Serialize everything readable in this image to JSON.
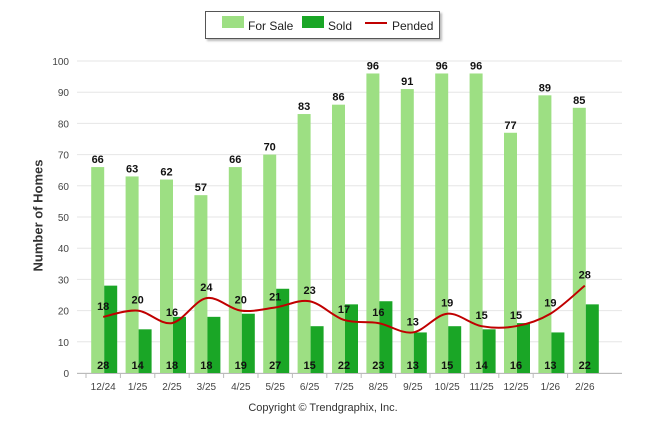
{
  "chart_data": {
    "type": "bar",
    "title": "",
    "xlabel": "",
    "ylabel": "Number of Homes",
    "ylim": [
      0,
      100
    ],
    "yticks": [
      0,
      10,
      20,
      30,
      40,
      50,
      60,
      70,
      80,
      90,
      100
    ],
    "categories": [
      "12/24",
      "1/25",
      "2/25",
      "3/25",
      "4/25",
      "5/25",
      "6/25",
      "7/25",
      "8/25",
      "9/25",
      "10/25",
      "11/25",
      "12/25",
      "1/26",
      "2/26"
    ],
    "series": [
      {
        "name": "For Sale",
        "kind": "bar",
        "color": "#9ddf83",
        "values": [
          66,
          63,
          62,
          57,
          66,
          70,
          83,
          86,
          96,
          91,
          96,
          96,
          77,
          89,
          85
        ]
      },
      {
        "name": "Sold",
        "kind": "bar",
        "color": "#1aa626",
        "values": [
          28,
          14,
          18,
          18,
          19,
          27,
          15,
          22,
          23,
          13,
          15,
          14,
          16,
          13,
          22
        ]
      },
      {
        "name": "Pended",
        "kind": "line",
        "color": "#c00000",
        "values": [
          18,
          20,
          16,
          24,
          20,
          21,
          23,
          17,
          16,
          13,
          19,
          15,
          15,
          19,
          28
        ]
      }
    ],
    "legend_position": "top-center",
    "grid": true
  },
  "footer": {
    "copyright": "Copyright © Trendgraphix, Inc."
  }
}
